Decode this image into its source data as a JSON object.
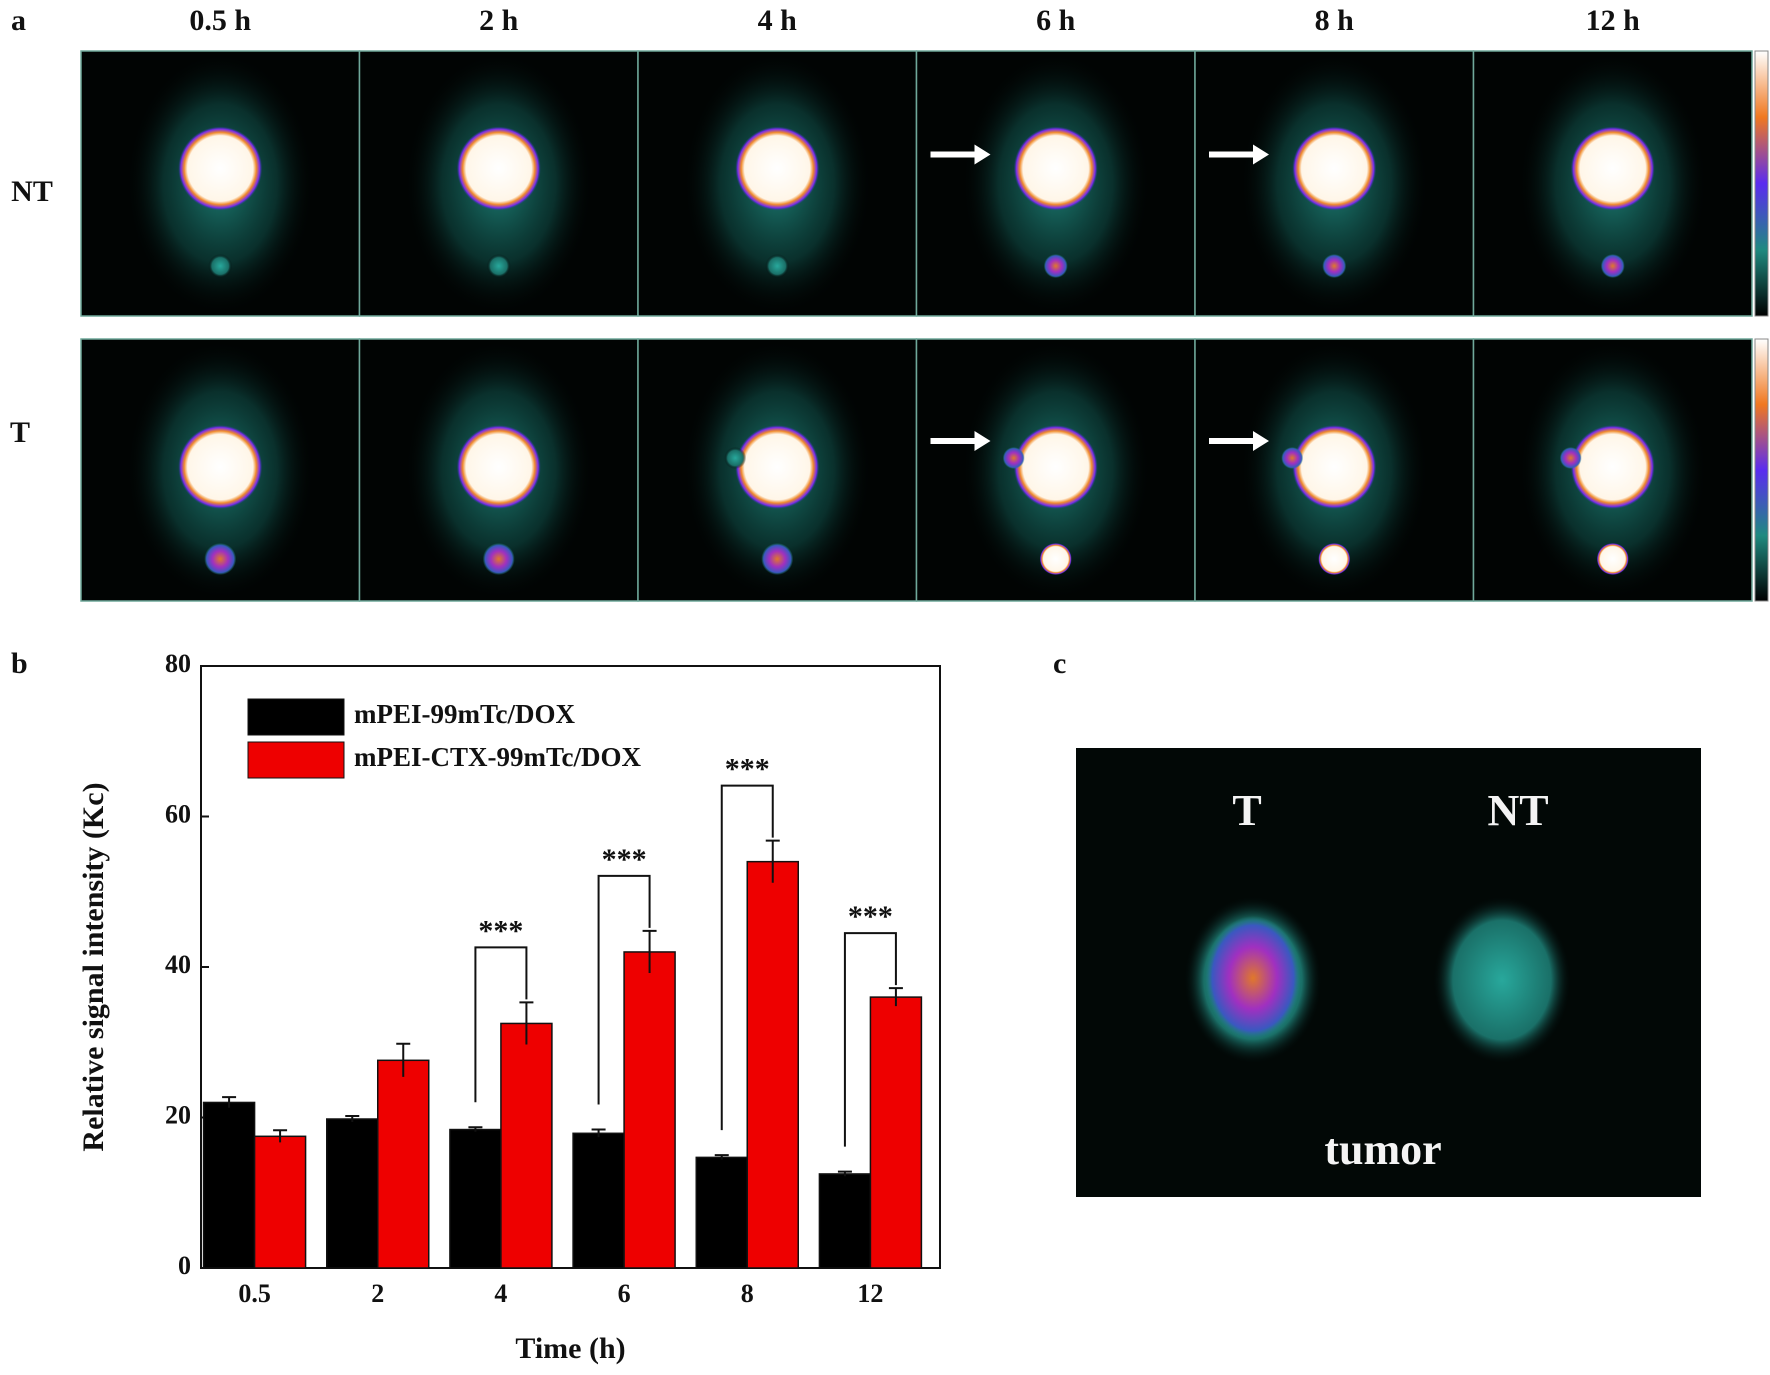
{
  "panels": {
    "a": {
      "label": "a",
      "times": [
        "0.5 h",
        "2 h",
        "4 h",
        "6 h",
        "8 h",
        "12 h"
      ],
      "rows": [
        "NT",
        "T"
      ]
    },
    "b": {
      "label": "b"
    },
    "c": {
      "label": "c",
      "left": "T",
      "right": "NT",
      "caption": "tumor"
    }
  },
  "chart_data": {
    "type": "bar",
    "xlabel": "Time (h)",
    "ylabel": "Relative signal intensity (Kc)",
    "categories": [
      "0.5",
      "2",
      "4",
      "6",
      "8",
      "12"
    ],
    "series": [
      {
        "name": "mPEI-99mTc/DOX",
        "color": "#000000",
        "values": [
          22,
          19.8,
          18.4,
          17.9,
          14.7,
          12.5
        ],
        "errors": [
          0.7,
          0.4,
          0.3,
          0.5,
          0.3,
          0.3
        ]
      },
      {
        "name": "mPEI-CTX-99mTc/DOX",
        "color": "#ee0000",
        "values": [
          17.5,
          27.6,
          32.5,
          42,
          54,
          36
        ],
        "errors": [
          0.8,
          2.2,
          2.8,
          2.8,
          2.8,
          1.2
        ]
      }
    ],
    "significance": [
      null,
      null,
      "***",
      "***",
      "***",
      "***"
    ],
    "ylim": [
      0,
      80
    ],
    "yticks": [
      0,
      20,
      40,
      60,
      80
    ],
    "legend": "upper left"
  }
}
